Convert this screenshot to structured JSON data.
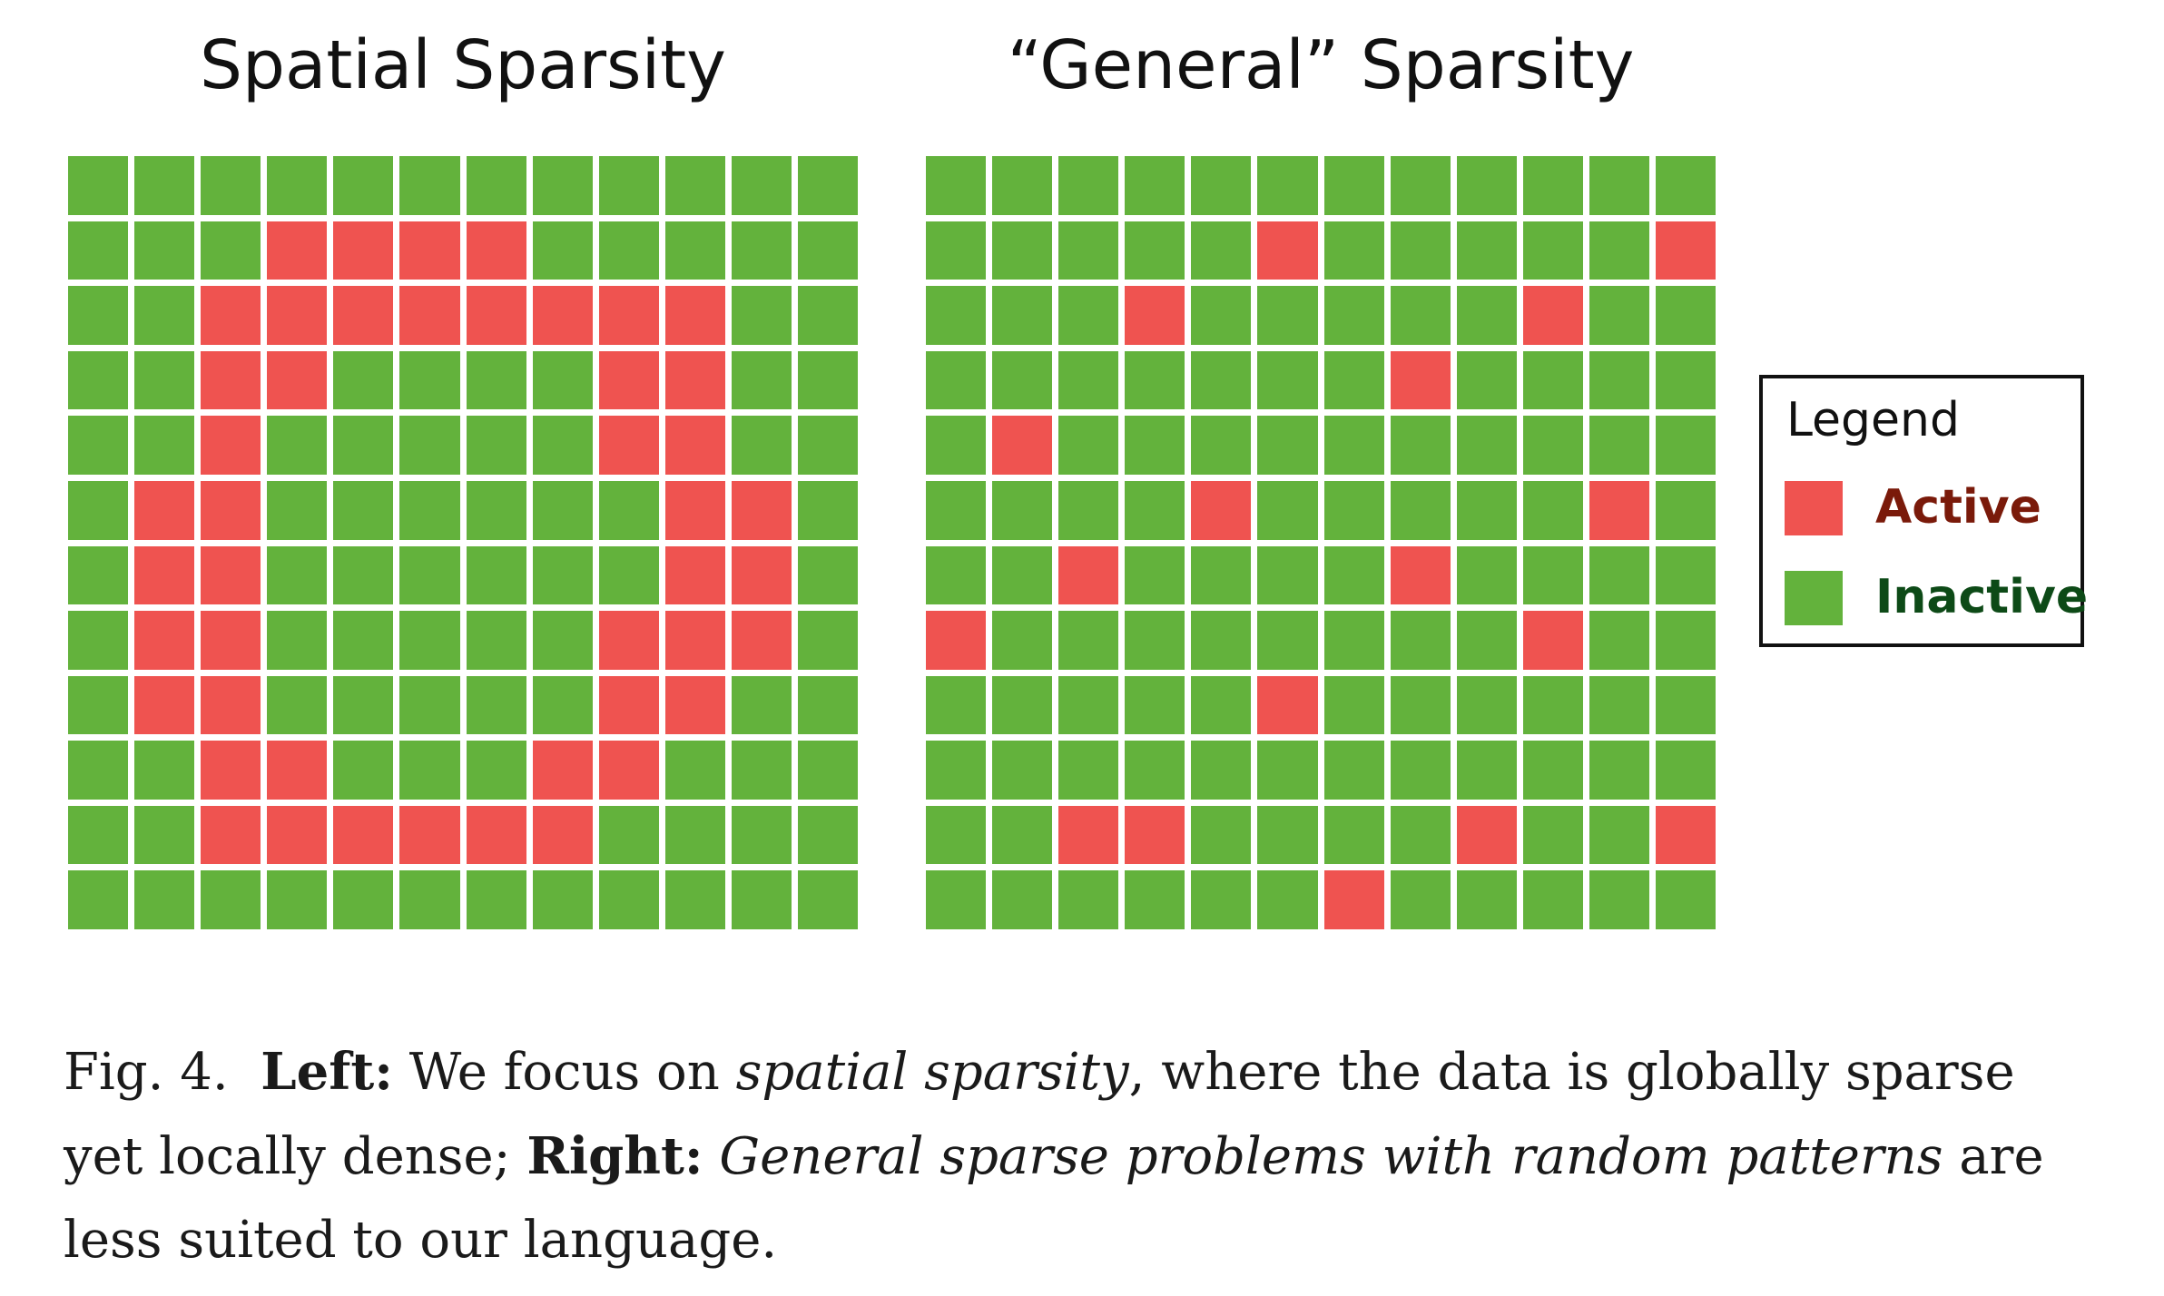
{
  "colors": {
    "active": "#ef5350",
    "inactive": "#63b23c",
    "active_label": "#7a1a0a",
    "inactive_label": "#0d4a17"
  },
  "panels": [
    {
      "title": "Spatial Sparsity",
      "grid": [
        [
          0,
          0,
          0,
          0,
          0,
          0,
          0,
          0,
          0,
          0,
          0,
          0
        ],
        [
          0,
          0,
          0,
          1,
          1,
          1,
          1,
          0,
          0,
          0,
          0,
          0
        ],
        [
          0,
          0,
          1,
          1,
          1,
          1,
          1,
          1,
          1,
          1,
          0,
          0
        ],
        [
          0,
          0,
          1,
          1,
          0,
          0,
          0,
          0,
          1,
          1,
          0,
          0
        ],
        [
          0,
          0,
          1,
          0,
          0,
          0,
          0,
          0,
          1,
          1,
          0,
          0
        ],
        [
          0,
          1,
          1,
          0,
          0,
          0,
          0,
          0,
          0,
          1,
          1,
          0
        ],
        [
          0,
          1,
          1,
          0,
          0,
          0,
          0,
          0,
          0,
          1,
          1,
          0
        ],
        [
          0,
          1,
          1,
          0,
          0,
          0,
          0,
          0,
          1,
          1,
          1,
          0
        ],
        [
          0,
          1,
          1,
          0,
          0,
          0,
          0,
          0,
          1,
          1,
          0,
          0
        ],
        [
          0,
          0,
          1,
          1,
          0,
          0,
          0,
          1,
          1,
          0,
          0,
          0
        ],
        [
          0,
          0,
          1,
          1,
          1,
          1,
          1,
          1,
          0,
          0,
          0,
          0
        ],
        [
          0,
          0,
          0,
          0,
          0,
          0,
          0,
          0,
          0,
          0,
          0,
          0
        ]
      ]
    },
    {
      "title": "“General” Sparsity",
      "grid": [
        [
          0,
          0,
          0,
          0,
          0,
          0,
          0,
          0,
          0,
          0,
          0,
          0
        ],
        [
          0,
          0,
          0,
          0,
          0,
          1,
          0,
          0,
          0,
          0,
          0,
          1
        ],
        [
          0,
          0,
          0,
          1,
          0,
          0,
          0,
          0,
          0,
          1,
          0,
          0
        ],
        [
          0,
          0,
          0,
          0,
          0,
          0,
          0,
          1,
          0,
          0,
          0,
          0
        ],
        [
          0,
          1,
          0,
          0,
          0,
          0,
          0,
          0,
          0,
          0,
          0,
          0
        ],
        [
          0,
          0,
          0,
          0,
          1,
          0,
          0,
          0,
          0,
          0,
          1,
          0
        ],
        [
          0,
          0,
          1,
          0,
          0,
          0,
          0,
          1,
          0,
          0,
          0,
          0
        ],
        [
          1,
          0,
          0,
          0,
          0,
          0,
          0,
          0,
          0,
          1,
          0,
          0
        ],
        [
          0,
          0,
          0,
          0,
          0,
          1,
          0,
          0,
          0,
          0,
          0,
          0
        ],
        [
          0,
          0,
          0,
          0,
          0,
          0,
          0,
          0,
          0,
          0,
          0,
          0
        ],
        [
          0,
          0,
          1,
          1,
          0,
          0,
          0,
          0,
          1,
          0,
          0,
          1
        ],
        [
          0,
          0,
          0,
          0,
          0,
          0,
          1,
          0,
          0,
          0,
          0,
          0
        ]
      ]
    }
  ],
  "legend": {
    "title": "Legend",
    "active_label": "Active",
    "inactive_label": "Inactive"
  },
  "caption": {
    "fig_label": "Fig. 4.",
    "left_label": "Left:",
    "text_1": " We focus on ",
    "italic_1": "spatial sparsity",
    "text_2": ", where the data is globally sparse yet locally dense; ",
    "right_label": "Right:",
    "italic_2": "General sparse problems with random patterns",
    "text_3": " are less suited to our language."
  }
}
